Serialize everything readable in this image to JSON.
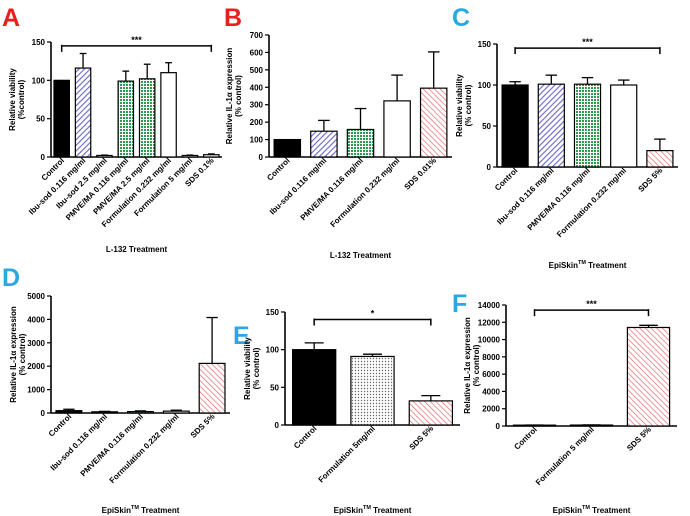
{
  "colors": {
    "letter_red": "#e8201c",
    "letter_blue": "#29a9e1",
    "black": "#000000",
    "blue_fill": "#7777dd",
    "green_fill": "#33aa55",
    "red_fill": "#e06060",
    "white": "#ffffff",
    "gray_dots": "#777777"
  },
  "chart_data": [
    {
      "id": "A",
      "letter": "A",
      "letter_color": "red",
      "type": "bar",
      "ylabel_lines": [
        "Relative viability",
        "(%control)"
      ],
      "xlabel": [
        "L-132 Treatment"
      ],
      "ylim": [
        0,
        150
      ],
      "yticks": [
        0,
        50,
        100,
        150
      ],
      "categories": [
        "Control",
        "Ibu-sod 0.116 mg/ml",
        "Ibu-sod 2.5 mg/ml",
        "PMVE/MA 0.116 mg/ml",
        "PMVE/MA 2.5 mg/ml",
        "Formulation 0.232 mg/ml",
        "Formulation 5 mg/ml",
        "SDS 0.1%"
      ],
      "values": [
        100,
        116,
        2,
        99,
        102,
        110,
        2,
        3
      ],
      "errors": [
        0,
        19,
        0.5,
        13,
        19,
        13,
        0.5,
        1
      ],
      "fills": [
        "black",
        "blue",
        "white",
        "green",
        "green",
        "white",
        "white",
        "white"
      ],
      "significance": {
        "label": "***",
        "from": 0,
        "to": 7,
        "y": 145
      }
    },
    {
      "id": "B",
      "letter": "B",
      "letter_color": "red",
      "type": "bar",
      "ylabel_lines": [
        "Relative IL-1α expression",
        "(% control)"
      ],
      "xlabel": [
        "L-132 Treatment"
      ],
      "ylim": [
        0,
        700
      ],
      "yticks": [
        0,
        100,
        200,
        300,
        400,
        500,
        600,
        700
      ],
      "categories": [
        "Control",
        "Ibu-sod 0.116 mg/ml",
        "PMVE/MA 0.116 mg/ml",
        "Formulation 0.232 mg/ml",
        "SDS 0.01%"
      ],
      "values": [
        100,
        148,
        158,
        322,
        395
      ],
      "errors": [
        0,
        62,
        120,
        148,
        208
      ],
      "fills": [
        "black",
        "blue",
        "green",
        "white",
        "red"
      ]
    },
    {
      "id": "C",
      "letter": "C",
      "letter_color": "blue",
      "type": "bar",
      "ylabel_lines": [
        "Relative viability",
        "(% control)"
      ],
      "xlabel": [
        "EpiSkin",
        "TM",
        " Treatment"
      ],
      "ylim": [
        0,
        150
      ],
      "yticks": [
        0,
        50,
        100,
        150
      ],
      "categories": [
        "Control",
        "Ibu-sod 0.116 mg/ml",
        "PMVE/MA 0.116 mg/ml",
        "Formulation 0.232 mg/ml",
        "SDS 5%"
      ],
      "values": [
        100,
        101,
        101,
        100,
        20
      ],
      "errors": [
        4,
        11,
        8,
        6,
        14
      ],
      "fills": [
        "black",
        "blue",
        "green",
        "white",
        "red"
      ],
      "significance": {
        "label": "***",
        "from": 0,
        "to": 4,
        "y": 145
      }
    },
    {
      "id": "D",
      "letter": "D",
      "letter_color": "blue",
      "type": "bar",
      "ylabel_lines": [
        "Relative IL-1α expression",
        "(% control)"
      ],
      "xlabel": [
        "EpiSkin",
        "TM",
        " Treatment"
      ],
      "ylim": [
        0,
        5000
      ],
      "yticks": [
        0,
        1000,
        2000,
        3000,
        4000,
        5000
      ],
      "categories": [
        "Control",
        "Ibu-sod 0.116 mg/ml",
        "PMVE/MA 0.116 mg/ml",
        "Formulation 0.232 mg/ml",
        "SDS 5%"
      ],
      "values": [
        100,
        50,
        60,
        80,
        2120
      ],
      "errors": [
        60,
        20,
        30,
        40,
        1960
      ],
      "fills": [
        "black",
        "blue",
        "green",
        "white",
        "red"
      ]
    },
    {
      "id": "E",
      "letter": "E",
      "letter_color": "blue",
      "type": "bar",
      "ylabel_lines": [
        "Relative viability",
        "(% control)"
      ],
      "xlabel": [
        "EpiSkin",
        "TM",
        " Treatment"
      ],
      "ylim": [
        0,
        150
      ],
      "yticks": [
        0,
        50,
        100,
        150
      ],
      "categories": [
        "Control",
        "Formulation 5mg/ml",
        "SDS 5%"
      ],
      "values": [
        100,
        91,
        32
      ],
      "errors": [
        9,
        3,
        7
      ],
      "fills": [
        "black",
        "dots",
        "red"
      ],
      "significance": {
        "label": "*",
        "from": 0,
        "to": 2,
        "y": 140
      }
    },
    {
      "id": "F",
      "letter": "F",
      "letter_color": "blue",
      "type": "bar",
      "ylabel_lines": [
        "Relative IL-1α expression",
        "(% control)"
      ],
      "xlabel": [
        "EpiSkin",
        "TM",
        " Treatment"
      ],
      "ylim": [
        0,
        14000
      ],
      "yticks": [
        0,
        2000,
        4000,
        6000,
        8000,
        10000,
        12000,
        14000
      ],
      "categories": [
        "Control",
        "Formulation 5 mg/ml",
        "SDS 5%"
      ],
      "values": [
        100,
        110,
        11400
      ],
      "errors": [
        15,
        20,
        250
      ],
      "fills": [
        "white",
        "white",
        "red"
      ],
      "significance": {
        "label": "***",
        "from": 0,
        "to": 2,
        "y": 13400
      }
    }
  ]
}
